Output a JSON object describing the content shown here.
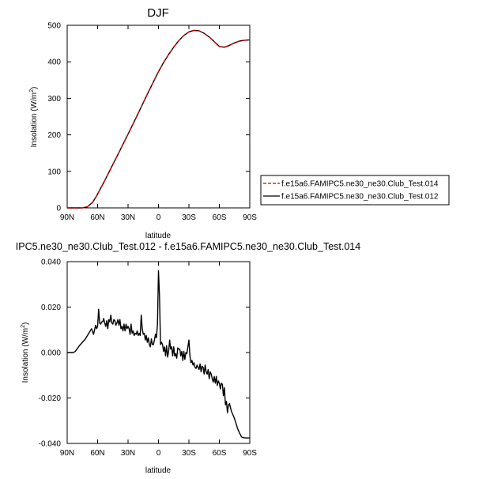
{
  "colors": {
    "series_014": "#cc0000",
    "series_012": "#000000",
    "axis": "#000000"
  },
  "chart_data": [
    {
      "type": "line",
      "title": "DJF",
      "xlabel": "latitude",
      "ylabel": "Insolation (W/m²)",
      "ylabel_main": "Insolation (W/m",
      "ylabel_sup": "2",
      "ylabel_close": ")",
      "xlim": [
        -90,
        90
      ],
      "ylim": [
        0,
        500
      ],
      "x_direction": "north-to-south (90N on left)",
      "x_ticks": [
        -90,
        -60,
        -30,
        0,
        30,
        60,
        90
      ],
      "x_tick_labels": [
        "90N",
        "60N",
        "30N",
        "0",
        "30S",
        "60S",
        "90S"
      ],
      "y_ticks": [
        0,
        100,
        200,
        300,
        400,
        500
      ],
      "y_tick_labels": [
        "0",
        "100",
        "200",
        "300",
        "400",
        "500"
      ],
      "x": [
        -90,
        -80,
        -75,
        -70,
        -68,
        -65,
        -62,
        -60,
        -55,
        -50,
        -45,
        -40,
        -35,
        -30,
        -25,
        -20,
        -15,
        -10,
        -5,
        0,
        5,
        10,
        15,
        20,
        25,
        30,
        35,
        40,
        45,
        50,
        55,
        60,
        65,
        70,
        75,
        80,
        85,
        90
      ],
      "series": [
        {
          "name": "f.e15a6.FAMIPC5.ne30_ne30.Club_Test.014",
          "style": "dashed",
          "color": "#cc0000",
          "values": [
            0,
            0,
            0,
            3,
            8,
            15,
            28,
            38,
            64,
            91,
            119,
            146,
            174,
            202,
            230,
            259,
            288,
            317,
            345,
            373,
            398,
            420,
            440,
            458,
            472,
            482,
            486,
            485,
            478,
            468,
            455,
            442,
            440,
            445,
            452,
            457,
            459,
            460
          ]
        },
        {
          "name": "f.e15a6.FAMIPC5.ne30_ne30.Club_Test.012",
          "style": "solid",
          "color": "#000000",
          "values": [
            0,
            0,
            0,
            3,
            8,
            15,
            28,
            38,
            64,
            91,
            119,
            146,
            174,
            202,
            230,
            259,
            288,
            317,
            345,
            373,
            398,
            420,
            440,
            458,
            472,
            482,
            486,
            485,
            478,
            468,
            455,
            442,
            440,
            445,
            452,
            457,
            459,
            460
          ]
        }
      ],
      "legend": [
        "f.e15a6.FAMIPC5.ne30_ne30.Club_Test.014",
        "f.e15a6.FAMIPC5.ne30_ne30.Club_Test.012"
      ],
      "legend_position": "right-lower"
    },
    {
      "type": "line",
      "title": "IPC5.ne30_ne30.Club_Test.012 - f.e15a6.FAMIPC5.ne30_ne30.Club_Test.014",
      "xlabel": "latitude",
      "ylabel": "Insolation (W/m²)",
      "ylabel_main": "Insolation (W/m",
      "ylabel_sup": "2",
      "ylabel_close": ")",
      "xlim": [
        -90,
        90
      ],
      "ylim": [
        -0.04,
        0.04
      ],
      "x_ticks": [
        -90,
        -60,
        -30,
        0,
        30,
        60,
        90
      ],
      "x_tick_labels": [
        "90N",
        "60N",
        "30N",
        "0",
        "30S",
        "60S",
        "90S"
      ],
      "y_ticks": [
        -0.04,
        -0.02,
        0.0,
        0.02,
        0.04
      ],
      "y_tick_labels": [
        "-0.040",
        "-0.020",
        "0.000",
        "0.020",
        "0.040"
      ],
      "x": [
        -90,
        -84,
        -82,
        -78,
        -72,
        -68,
        -66,
        -64,
        -62,
        -61,
        -60,
        -59,
        -58,
        -57,
        -56,
        -55,
        -54,
        -53,
        -52,
        -51,
        -50,
        -49,
        -48,
        -47,
        -46,
        -45,
        -44,
        -43,
        -42,
        -41,
        -40,
        -39,
        -38,
        -37,
        -36,
        -35,
        -34,
        -33,
        -32,
        -31,
        -30,
        -29,
        -28,
        -27,
        -26,
        -25,
        -24,
        -23,
        -22,
        -21,
        -20,
        -19,
        -18,
        -17,
        -16,
        -15,
        -14,
        -13,
        -12,
        -11,
        -10,
        -9,
        -8,
        -7,
        -6,
        -5,
        -4,
        -3,
        -2,
        -1,
        0,
        1,
        2,
        3,
        4,
        5,
        6,
        7,
        8,
        9,
        10,
        11,
        12,
        13,
        14,
        15,
        16,
        17,
        18,
        19,
        20,
        21,
        22,
        23,
        24,
        25,
        26,
        27,
        28,
        29,
        30,
        31,
        32,
        33,
        34,
        35,
        36,
        37,
        38,
        39,
        40,
        41,
        42,
        43,
        44,
        45,
        46,
        47,
        48,
        49,
        50,
        51,
        52,
        53,
        54,
        55,
        56,
        57,
        58,
        59,
        60,
        61,
        62,
        63,
        64,
        65,
        66,
        67,
        68,
        69,
        70,
        72,
        74,
        76,
        78,
        80,
        82,
        84,
        86,
        90
      ],
      "series": [
        {
          "name": "IPC5.ne30_ne30.Club_Test.012 - f.e15a6.FAMIPC5.ne30_ne30.Club_Test.014",
          "color": "#000000",
          "values": [
            0.0,
            0.0,
            0.0005,
            0.003,
            0.006,
            0.009,
            0.0105,
            0.008,
            0.012,
            0.0105,
            0.0115,
            0.019,
            0.013,
            0.0125,
            0.0135,
            0.0135,
            0.015,
            0.013,
            0.0115,
            0.014,
            0.0105,
            0.0145,
            0.0135,
            0.0165,
            0.013,
            0.0125,
            0.0145,
            0.014,
            0.012,
            0.013,
            0.0145,
            0.012,
            0.0145,
            0.0105,
            0.0115,
            0.0095,
            0.0125,
            0.0095,
            0.0125,
            0.0105,
            0.0115,
            0.0105,
            0.008,
            0.0125,
            0.0085,
            0.0095,
            0.0075,
            0.0085,
            0.008,
            0.0095,
            0.0075,
            0.0085,
            0.0075,
            0.0165,
            0.0105,
            0.008,
            0.0085,
            0.0055,
            0.0075,
            0.0045,
            0.0065,
            0.0035,
            0.0025,
            0.006,
            0.0035,
            0.0035,
            0.0055,
            0.008,
            0.0065,
            0.0125,
            0.036,
            0.025,
            0.0035,
            0.0045,
            0.0035,
            0.0005,
            0.0025,
            -0.0015,
            0.003,
            -0.002,
            0.0005,
            0.0055,
            0.0015,
            0.0025,
            -0.0015,
            0.0025,
            -0.0015,
            -0.0005,
            -0.0025,
            0.002,
            0.0015,
            0.0015,
            -0.0015,
            0.0005,
            -0.0035,
            0.0005,
            -0.003,
            0.0,
            -0.0005,
            0.0025,
            0.0055,
            -0.0015,
            -0.0045,
            -0.0035,
            -0.0055,
            -0.0045,
            -0.0065,
            -0.007,
            -0.0055,
            -0.0065,
            -0.0075,
            -0.005,
            -0.0085,
            -0.006,
            -0.0065,
            -0.0095,
            -0.0055,
            -0.0085,
            -0.0095,
            -0.0075,
            -0.0115,
            -0.0085,
            -0.0095,
            -0.0115,
            -0.013,
            -0.0105,
            -0.0135,
            -0.0105,
            -0.0145,
            -0.0125,
            -0.0135,
            -0.016,
            -0.0135,
            -0.014,
            -0.019,
            -0.0155,
            -0.023,
            -0.0215,
            -0.0265,
            -0.023,
            -0.0225,
            -0.026,
            -0.028,
            -0.0305,
            -0.0335,
            -0.0355,
            -0.0372,
            -0.0375,
            -0.0376,
            -0.0376
          ]
        }
      ]
    }
  ]
}
